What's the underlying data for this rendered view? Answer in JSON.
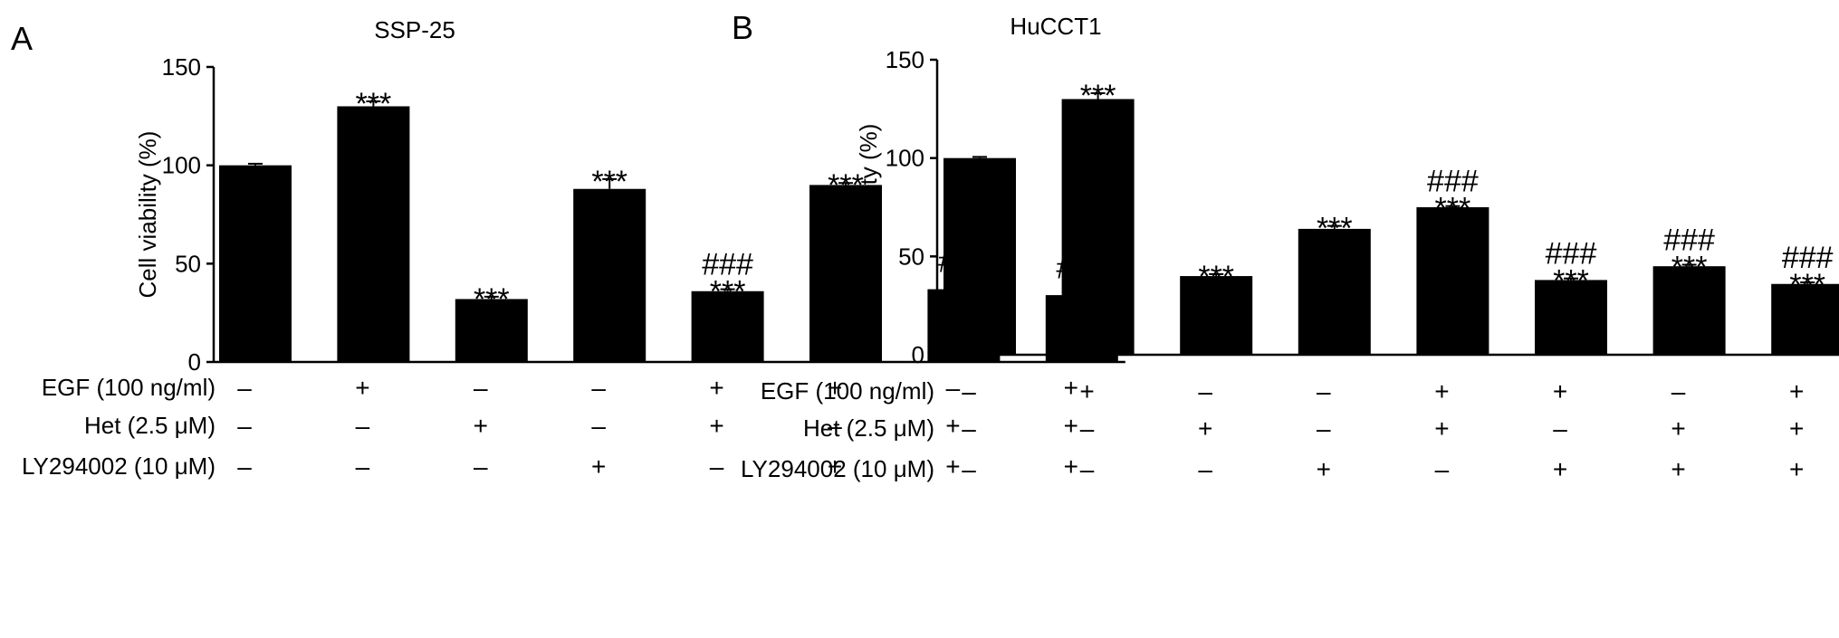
{
  "figure": {
    "panels": [
      "A",
      "B"
    ],
    "ylabel": "Cell viability (%)",
    "treatment_labels": [
      "EGF (100 ng/ml)",
      "Het (2.5 μM)",
      "LY294002 (10 μM)"
    ],
    "plus_symbol": "+",
    "minus_symbol": "–",
    "bar_color": "#000000"
  },
  "chart_data": [
    {
      "type": "bar",
      "panel": "A",
      "title": "SSP-25",
      "xlabel": "",
      "ylabel": "Cell viability (%)",
      "ylim": [
        0,
        150
      ],
      "yticks": [
        0,
        50,
        100,
        150
      ],
      "values": [
        100,
        130,
        32,
        88,
        36,
        90,
        37,
        34
      ],
      "errors": [
        0.8,
        2.5,
        1.2,
        5,
        1.0,
        1.0,
        1.5,
        1.3
      ],
      "significance": [
        "",
        "***",
        "***",
        "***",
        "###\n***",
        "***",
        "###\n***",
        "###\n***"
      ],
      "treatments": [
        [
          "–",
          "+",
          "–",
          "–",
          "+",
          "+",
          "–",
          "+"
        ],
        [
          "–",
          "–",
          "+",
          "–",
          "+",
          "–",
          "+",
          "+"
        ],
        [
          "–",
          "–",
          "–",
          "+",
          "–",
          "+",
          "+",
          "+"
        ]
      ]
    },
    {
      "type": "bar",
      "panel": "B",
      "title": "HuCCT1",
      "xlabel": "",
      "ylabel": "Cell viability (%)",
      "ylim": [
        0,
        150
      ],
      "yticks": [
        0,
        50,
        100,
        150
      ],
      "values": [
        100,
        130,
        40,
        64,
        75,
        38,
        45,
        36
      ],
      "errors": [
        0.6,
        3,
        1.0,
        1.5,
        0.6,
        0.8,
        0.8,
        0.8
      ],
      "significance": [
        "",
        "***",
        "***",
        "***",
        "###\n***",
        "###\n***",
        "###\n***",
        "###\n***"
      ],
      "treatments": [
        [
          "–",
          "+",
          "–",
          "–",
          "+",
          "+",
          "–",
          "+"
        ],
        [
          "–",
          "–",
          "+",
          "–",
          "+",
          "–",
          "+",
          "+"
        ],
        [
          "–",
          "–",
          "–",
          "+",
          "–",
          "+",
          "+",
          "+"
        ]
      ]
    }
  ]
}
